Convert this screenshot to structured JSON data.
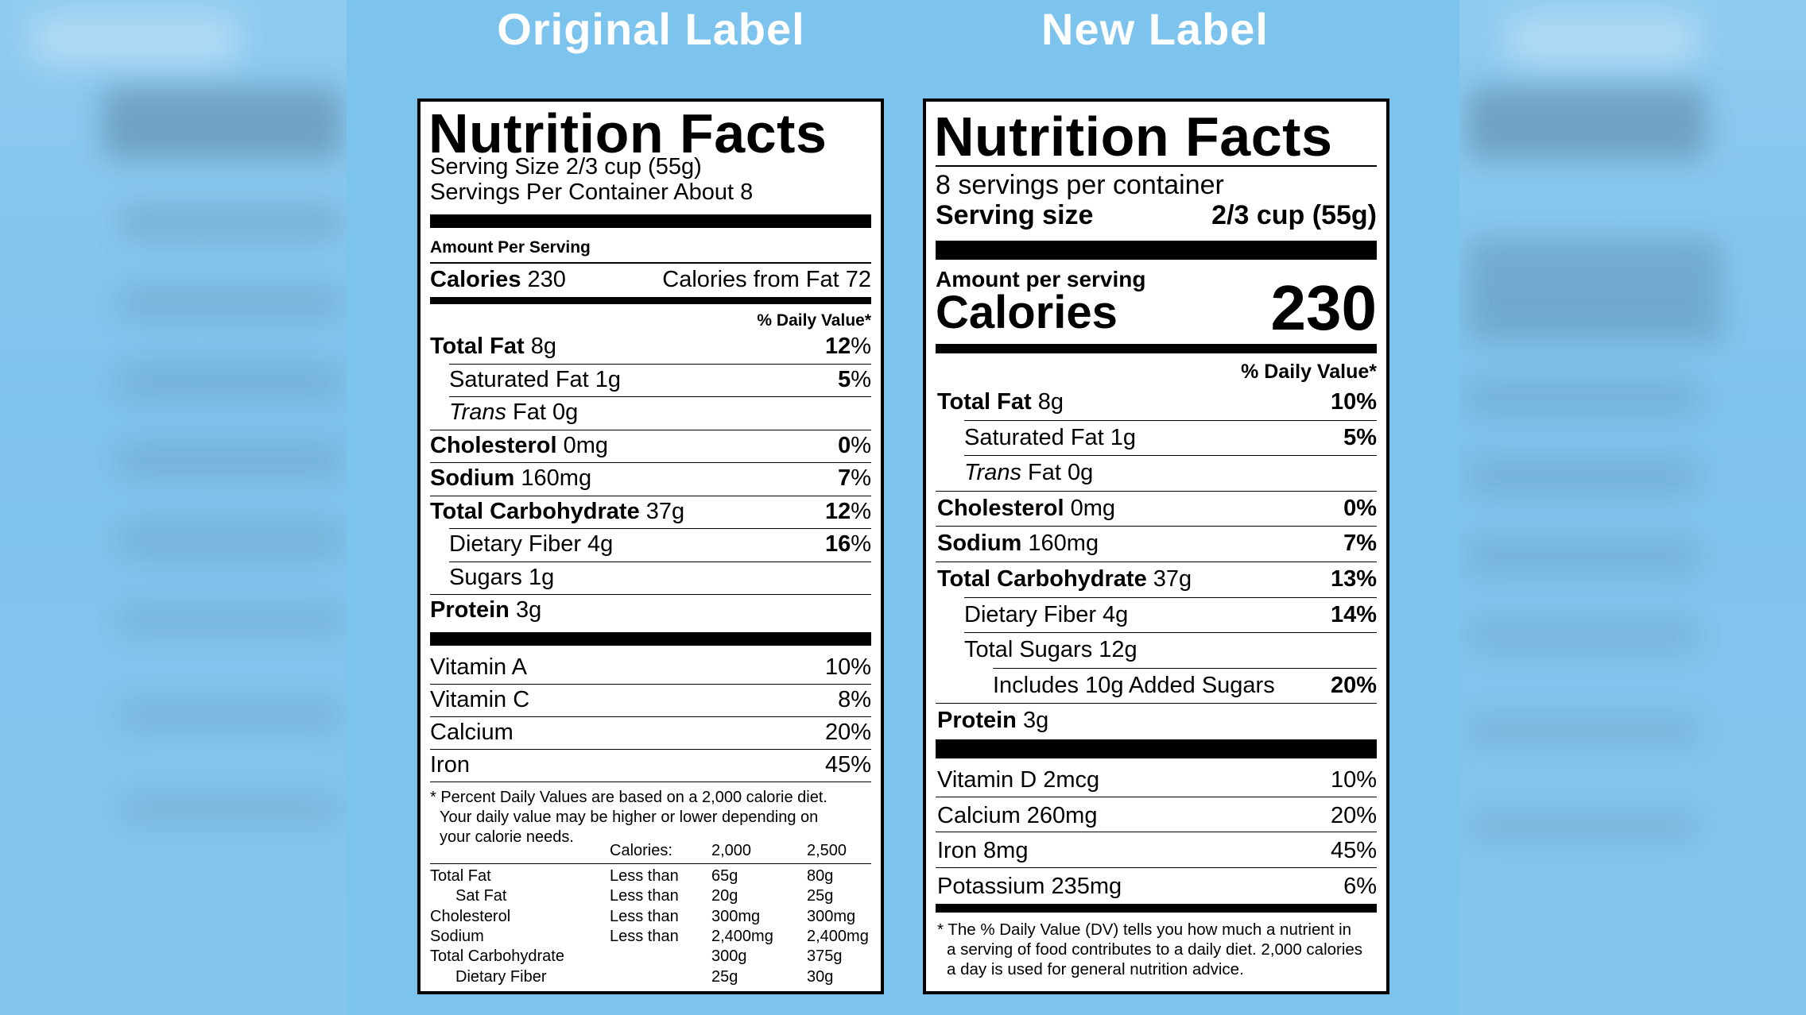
{
  "headings": {
    "original": "Original Label",
    "new": "New Label"
  },
  "original": {
    "title": "Nutrition Facts",
    "serving_size": "Serving Size 2/3 cup (55g)",
    "servings_per_container": "Servings Per Container About 8",
    "amount_per_serving": "Amount Per Serving",
    "calories_label": "Calories",
    "calories_value": "230",
    "calories_from_fat": "Calories from Fat 72",
    "dv_header": "% Daily Value*",
    "nutrients": [
      {
        "name": "Total Fat",
        "amount": "8g",
        "dv_num": "12",
        "dv_sign": "%"
      },
      {
        "name": "Saturated Fat 1g",
        "amount": "",
        "dv_num": "5",
        "dv_sign": "%"
      },
      {
        "name": "Trans",
        "amount": "Fat 0g",
        "dv_num": "",
        "dv_sign": ""
      },
      {
        "name": "Cholesterol",
        "amount": "0mg",
        "dv_num": "0",
        "dv_sign": "%"
      },
      {
        "name": "Sodium",
        "amount": "160mg",
        "dv_num": "7",
        "dv_sign": "%"
      },
      {
        "name": "Total Carbohydrate",
        "amount": "37g",
        "dv_num": "12",
        "dv_sign": "%"
      },
      {
        "name": "Dietary Fiber 4g",
        "amount": "",
        "dv_num": "16",
        "dv_sign": "%"
      },
      {
        "name": "Sugars 1g",
        "amount": "",
        "dv_num": "",
        "dv_sign": ""
      },
      {
        "name": "Protein",
        "amount": "3g",
        "dv_num": "",
        "dv_sign": ""
      }
    ],
    "vitamins": [
      {
        "name": "Vitamin A",
        "dv": "10%"
      },
      {
        "name": "Vitamin C",
        "dv": "8%"
      },
      {
        "name": "Calcium",
        "dv": "20%"
      },
      {
        "name": "Iron",
        "dv": "45%"
      }
    ],
    "footnote_lines": [
      "* Percent Daily Values are based on a 2,000 calorie diet.",
      "Your daily value may be higher or lower depending on",
      "your calorie needs."
    ],
    "table": {
      "header": [
        "Calories:",
        "2,000",
        "2,500"
      ],
      "rows": [
        [
          "Total Fat",
          "Less than",
          "65g",
          "80g"
        ],
        [
          "Sat Fat",
          "Less than",
          "20g",
          "25g"
        ],
        [
          "Cholesterol",
          "Less than",
          "300mg",
          "300mg"
        ],
        [
          "Sodium",
          "Less than",
          "2,400mg",
          "2,400mg"
        ],
        [
          "Total Carbohydrate",
          "",
          "300g",
          "375g"
        ],
        [
          "Dietary Fiber",
          "",
          "25g",
          "30g"
        ]
      ]
    }
  },
  "new": {
    "title": "Nutrition Facts",
    "servings_per_container": "8 servings per container",
    "serving_size_label": "Serving size",
    "serving_size_value": "2/3 cup (55g)",
    "amount_per_serving": "Amount per serving",
    "calories_label": "Calories",
    "calories_value": "230",
    "dv_header": "% Daily Value*",
    "nutrients": [
      {
        "name": "Total Fat",
        "amount": "8g",
        "dv": "10%"
      },
      {
        "name": "Saturated Fat 1g",
        "amount": "",
        "dv": "5%"
      },
      {
        "name": "Trans",
        "amount": "Fat 0g",
        "dv": ""
      },
      {
        "name": "Cholesterol",
        "amount": "0mg",
        "dv": "0%"
      },
      {
        "name": "Sodium",
        "amount": "160mg",
        "dv": "7%"
      },
      {
        "name": "Total Carbohydrate",
        "amount": "37g",
        "dv": "13%"
      },
      {
        "name": "Dietary Fiber 4g",
        "amount": "",
        "dv": "14%"
      },
      {
        "name": "Total Sugars 12g",
        "amount": "",
        "dv": ""
      },
      {
        "name": "Includes 10g Added Sugars",
        "amount": "",
        "dv": "20%"
      },
      {
        "name": "Protein",
        "amount": "3g",
        "dv": ""
      }
    ],
    "vitamins": [
      {
        "name": "Vitamin D 2mcg",
        "dv": "10%"
      },
      {
        "name": "Calcium 260mg",
        "dv": "20%"
      },
      {
        "name": "Iron 8mg",
        "dv": "45%"
      },
      {
        "name": "Potassium 235mg",
        "dv": "6%"
      }
    ],
    "footnote_lines": [
      "* The % Daily Value (DV) tells you how much a nutrient in",
      "a serving of food contributes to a daily diet. 2,000 calories",
      "a day is used for general nutrition advice."
    ]
  }
}
